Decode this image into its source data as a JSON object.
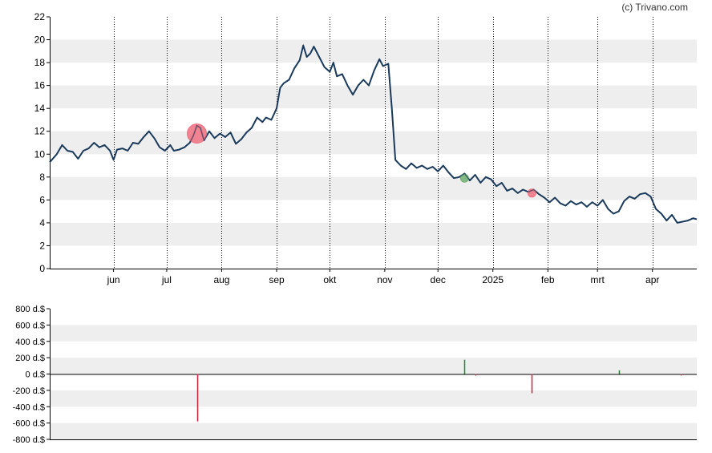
{
  "watermark": "(c) Trivano.com",
  "chart_data": [
    {
      "type": "line",
      "title": "",
      "xlabel": "",
      "ylabel": "",
      "ylim": [
        0,
        22
      ],
      "yticks": [
        0,
        2,
        4,
        6,
        8,
        10,
        12,
        14,
        16,
        18,
        20,
        22
      ],
      "xlim": [
        "2024-04-26",
        "2025-04-26"
      ],
      "xticks": [
        {
          "label": "jun",
          "date": "2024-06-01"
        },
        {
          "label": "jul",
          "date": "2024-07-01"
        },
        {
          "label": "aug",
          "date": "2024-08-01"
        },
        {
          "label": "sep",
          "date": "2024-09-01"
        },
        {
          "label": "okt",
          "date": "2024-10-01"
        },
        {
          "label": "nov",
          "date": "2024-11-01"
        },
        {
          "label": "dec",
          "date": "2024-12-01"
        },
        {
          "label": "2025",
          "date": "2025-01-01"
        },
        {
          "label": "feb",
          "date": "2025-02-01"
        },
        {
          "label": "mrt",
          "date": "2025-03-01"
        },
        {
          "label": "apr",
          "date": "2025-04-01"
        }
      ],
      "grid": true,
      "line_color": "#1a3a5c",
      "series": [
        {
          "points": [
            [
              "2024-04-26",
              9.3
            ],
            [
              "2024-04-30",
              10.0
            ],
            [
              "2024-05-03",
              10.8
            ],
            [
              "2024-05-06",
              10.3
            ],
            [
              "2024-05-09",
              10.2
            ],
            [
              "2024-05-12",
              9.6
            ],
            [
              "2024-05-15",
              10.3
            ],
            [
              "2024-05-18",
              10.5
            ],
            [
              "2024-05-21",
              11.0
            ],
            [
              "2024-05-24",
              10.6
            ],
            [
              "2024-05-27",
              10.8
            ],
            [
              "2024-05-30",
              10.3
            ],
            [
              "2024-06-01",
              9.5
            ],
            [
              "2024-06-03",
              10.4
            ],
            [
              "2024-06-06",
              10.5
            ],
            [
              "2024-06-09",
              10.3
            ],
            [
              "2024-06-12",
              11.0
            ],
            [
              "2024-06-15",
              10.9
            ],
            [
              "2024-06-18",
              11.5
            ],
            [
              "2024-06-21",
              12.0
            ],
            [
              "2024-06-24",
              11.4
            ],
            [
              "2024-06-27",
              10.6
            ],
            [
              "2024-06-30",
              10.3
            ],
            [
              "2024-07-03",
              10.8
            ],
            [
              "2024-07-05",
              10.3
            ],
            [
              "2024-07-08",
              10.4
            ],
            [
              "2024-07-11",
              10.6
            ],
            [
              "2024-07-14",
              11.0
            ],
            [
              "2024-07-16",
              11.6
            ],
            [
              "2024-07-18",
              12.5
            ],
            [
              "2024-07-20",
              12.3
            ],
            [
              "2024-07-22",
              11.2
            ],
            [
              "2024-07-25",
              12.0
            ],
            [
              "2024-07-28",
              11.4
            ],
            [
              "2024-07-31",
              11.8
            ],
            [
              "2024-08-03",
              11.5
            ],
            [
              "2024-08-06",
              11.9
            ],
            [
              "2024-08-09",
              10.9
            ],
            [
              "2024-08-12",
              11.3
            ],
            [
              "2024-08-15",
              11.9
            ],
            [
              "2024-08-18",
              12.3
            ],
            [
              "2024-08-21",
              13.2
            ],
            [
              "2024-08-24",
              12.8
            ],
            [
              "2024-08-26",
              13.2
            ],
            [
              "2024-08-29",
              13.0
            ],
            [
              "2024-09-01",
              14.0
            ],
            [
              "2024-09-03",
              15.8
            ],
            [
              "2024-09-05",
              16.2
            ],
            [
              "2024-09-08",
              16.5
            ],
            [
              "2024-09-11",
              17.5
            ],
            [
              "2024-09-14",
              18.2
            ],
            [
              "2024-09-16",
              19.5
            ],
            [
              "2024-09-18",
              18.5
            ],
            [
              "2024-09-20",
              18.8
            ],
            [
              "2024-09-22",
              19.4
            ],
            [
              "2024-09-25",
              18.5
            ],
            [
              "2024-09-28",
              17.6
            ],
            [
              "2024-10-01",
              17.2
            ],
            [
              "2024-10-03",
              18.0
            ],
            [
              "2024-10-05",
              16.8
            ],
            [
              "2024-10-08",
              17.0
            ],
            [
              "2024-10-11",
              16.0
            ],
            [
              "2024-10-14",
              15.2
            ],
            [
              "2024-10-17",
              16.0
            ],
            [
              "2024-10-20",
              16.5
            ],
            [
              "2024-10-23",
              16.0
            ],
            [
              "2024-10-26",
              17.3
            ],
            [
              "2024-10-29",
              18.3
            ],
            [
              "2024-10-31",
              17.7
            ],
            [
              "2024-11-03",
              17.9
            ],
            [
              "2024-11-05",
              14.0
            ],
            [
              "2024-11-07",
              9.5
            ],
            [
              "2024-11-10",
              9.0
            ],
            [
              "2024-11-13",
              8.7
            ],
            [
              "2024-11-16",
              9.2
            ],
            [
              "2024-11-19",
              8.8
            ],
            [
              "2024-11-22",
              9.0
            ],
            [
              "2024-11-25",
              8.7
            ],
            [
              "2024-11-28",
              8.9
            ],
            [
              "2024-12-01",
              8.5
            ],
            [
              "2024-12-04",
              9.0
            ],
            [
              "2024-12-07",
              8.4
            ],
            [
              "2024-12-10",
              7.9
            ],
            [
              "2024-12-13",
              8.0
            ],
            [
              "2024-12-16",
              8.3
            ],
            [
              "2024-12-19",
              7.7
            ],
            [
              "2024-12-22",
              8.2
            ],
            [
              "2024-12-25",
              7.5
            ],
            [
              "2024-12-28",
              8.0
            ],
            [
              "2024-12-31",
              7.8
            ],
            [
              "2025-01-03",
              7.2
            ],
            [
              "2025-01-06",
              7.5
            ],
            [
              "2025-01-09",
              6.8
            ],
            [
              "2025-01-12",
              7.0
            ],
            [
              "2025-01-15",
              6.6
            ],
            [
              "2025-01-18",
              6.9
            ],
            [
              "2025-01-21",
              6.7
            ],
            [
              "2025-01-24",
              6.9
            ],
            [
              "2025-01-27",
              6.5
            ],
            [
              "2025-01-30",
              6.2
            ],
            [
              "2025-02-02",
              5.8
            ],
            [
              "2025-02-05",
              6.2
            ],
            [
              "2025-02-08",
              5.7
            ],
            [
              "2025-02-11",
              5.5
            ],
            [
              "2025-02-14",
              5.9
            ],
            [
              "2025-02-17",
              5.6
            ],
            [
              "2025-02-20",
              5.8
            ],
            [
              "2025-02-23",
              5.4
            ],
            [
              "2025-02-26",
              5.8
            ],
            [
              "2025-03-01",
              5.5
            ],
            [
              "2025-03-04",
              6.0
            ],
            [
              "2025-03-07",
              5.2
            ],
            [
              "2025-03-10",
              4.8
            ],
            [
              "2025-03-13",
              5.0
            ],
            [
              "2025-03-16",
              5.9
            ],
            [
              "2025-03-19",
              6.3
            ],
            [
              "2025-03-22",
              6.1
            ],
            [
              "2025-03-25",
              6.5
            ],
            [
              "2025-03-28",
              6.6
            ],
            [
              "2025-03-31",
              6.3
            ],
            [
              "2025-04-03",
              5.2
            ],
            [
              "2025-04-06",
              4.8
            ],
            [
              "2025-04-09",
              4.2
            ],
            [
              "2025-04-12",
              4.7
            ],
            [
              "2025-04-15",
              4.0
            ],
            [
              "2025-04-18",
              4.1
            ],
            [
              "2025-04-21",
              4.2
            ],
            [
              "2025-04-24",
              4.4
            ],
            [
              "2025-04-26",
              4.3
            ]
          ]
        }
      ],
      "markers": [
        {
          "date": "2024-07-18",
          "value": 11.8,
          "color": "#f07080",
          "size": "large"
        },
        {
          "date": "2024-12-16",
          "value": 7.9,
          "color": "#70b070",
          "size": "small"
        },
        {
          "date": "2025-01-23",
          "value": 6.6,
          "color": "#f07080",
          "size": "small"
        }
      ]
    },
    {
      "type": "bar",
      "title": "",
      "xlabel": "",
      "ylabel": "",
      "ylim": [
        -800,
        800
      ],
      "yticks": [
        "800 d.$",
        "600 d.$",
        "400 d.$",
        "200 d.$",
        "0 d.$",
        "-200 d.$",
        "-400 d.$",
        "-600 d.$",
        "-800 d.$"
      ],
      "ytick_values": [
        800,
        600,
        400,
        200,
        0,
        -200,
        -400,
        -600,
        -800
      ],
      "grid": true,
      "bars": [
        {
          "date": "2024-07-18",
          "value": -580,
          "color": "#d0203a"
        },
        {
          "date": "2024-12-16",
          "value": 175,
          "color": "#208a30"
        },
        {
          "date": "2024-12-22",
          "value": -20,
          "color": "#d0203a"
        },
        {
          "date": "2025-01-23",
          "value": -235,
          "color": "#d0203a"
        },
        {
          "date": "2025-03-13",
          "value": 45,
          "color": "#208a30"
        },
        {
          "date": "2025-04-17",
          "value": -18,
          "color": "#d0203a"
        }
      ]
    }
  ]
}
